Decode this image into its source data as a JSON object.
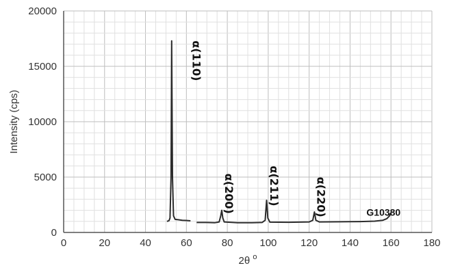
{
  "chart_data": {
    "type": "line",
    "title": "",
    "xlabel": "2θ",
    "xlabel_superscript": "o",
    "ylabel": "Intensity (cps)",
    "xlim": [
      0,
      180
    ],
    "ylim": [
      0,
      20000
    ],
    "x_ticks": [
      0,
      20,
      40,
      60,
      80,
      100,
      120,
      140,
      160,
      180
    ],
    "y_ticks": [
      0,
      5000,
      10000,
      15000,
      20000
    ],
    "grid": true,
    "series": [
      {
        "name": "G10380",
        "color": "#2b2b2b",
        "segments": [
          [
            [
              50.5,
              1000
            ],
            [
              51.5,
              1060
            ],
            [
              52.0,
              1300
            ],
            [
              52.5,
              5000
            ],
            [
              52.8,
              17300
            ],
            [
              53.2,
              5000
            ],
            [
              53.7,
              1500
            ],
            [
              54.5,
              1180
            ],
            [
              56,
              1150
            ],
            [
              58,
              1100
            ],
            [
              60,
              1080
            ],
            [
              62,
              1050
            ]
          ],
          [
            [
              65,
              900
            ],
            [
              70,
              900
            ],
            [
              74,
              880
            ],
            [
              76,
              950
            ],
            [
              76.8,
              1500
            ],
            [
              77.3,
              2000
            ],
            [
              77.8,
              1300
            ],
            [
              78.5,
              950
            ],
            [
              85,
              880
            ],
            [
              92,
              880
            ],
            [
              97,
              900
            ],
            [
              98.5,
              1100
            ],
            [
              99.2,
              2900
            ],
            [
              99.8,
              1300
            ],
            [
              100.8,
              930
            ],
            [
              110,
              920
            ],
            [
              120,
              950
            ],
            [
              121.8,
              1100
            ],
            [
              122.6,
              1850
            ],
            [
              123.3,
              1100
            ],
            [
              125,
              950
            ],
            [
              135,
              960
            ],
            [
              145,
              980
            ],
            [
              152,
              1020
            ],
            [
              156,
              1100
            ],
            [
              158,
              1250
            ],
            [
              159.3,
              1500
            ],
            [
              160,
              1800
            ]
          ]
        ]
      }
    ],
    "annotations": [
      {
        "text": "α(110)",
        "x": 63,
        "y": 15500
      },
      {
        "text": "α(200)",
        "x": 79,
        "y": 3500
      },
      {
        "text": "α(211)",
        "x": 101,
        "y": 4200
      },
      {
        "text": "α(220)",
        "x": 124,
        "y": 3200
      },
      {
        "text": "G10380",
        "x": 148,
        "y": 1500
      }
    ]
  }
}
